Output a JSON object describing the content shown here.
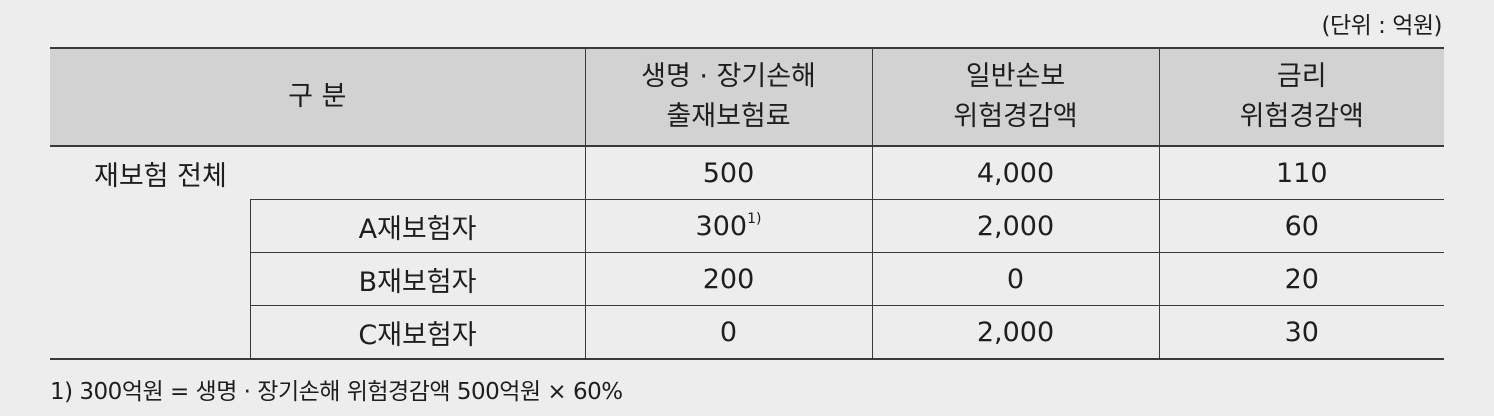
{
  "unit_label": "(단위 : 억원)",
  "header": {
    "category": "구 분",
    "col1_line1": "생명 · 장기손해",
    "col1_line2": "출재보험료",
    "col2_line1": "일반손보",
    "col2_line2": "위험경감액",
    "col3_line1": "금리",
    "col3_line2": "위험경감액"
  },
  "total": {
    "label": "재보험 전체",
    "v1": "500",
    "v2": "4,000",
    "v3": "110"
  },
  "rows": [
    {
      "label": "A재보험자",
      "v1": "300",
      "v1_sup": "1)",
      "v2": "2,000",
      "v3": "60"
    },
    {
      "label": "B재보험자",
      "v1": "200",
      "v2": "0",
      "v3": "20"
    },
    {
      "label": "C재보험자",
      "v1": "0",
      "v2": "2,000",
      "v3": "30"
    }
  ],
  "footnote": "1) 300억원 = 생명 · 장기손해 위험경감액 500억원 × 60%"
}
